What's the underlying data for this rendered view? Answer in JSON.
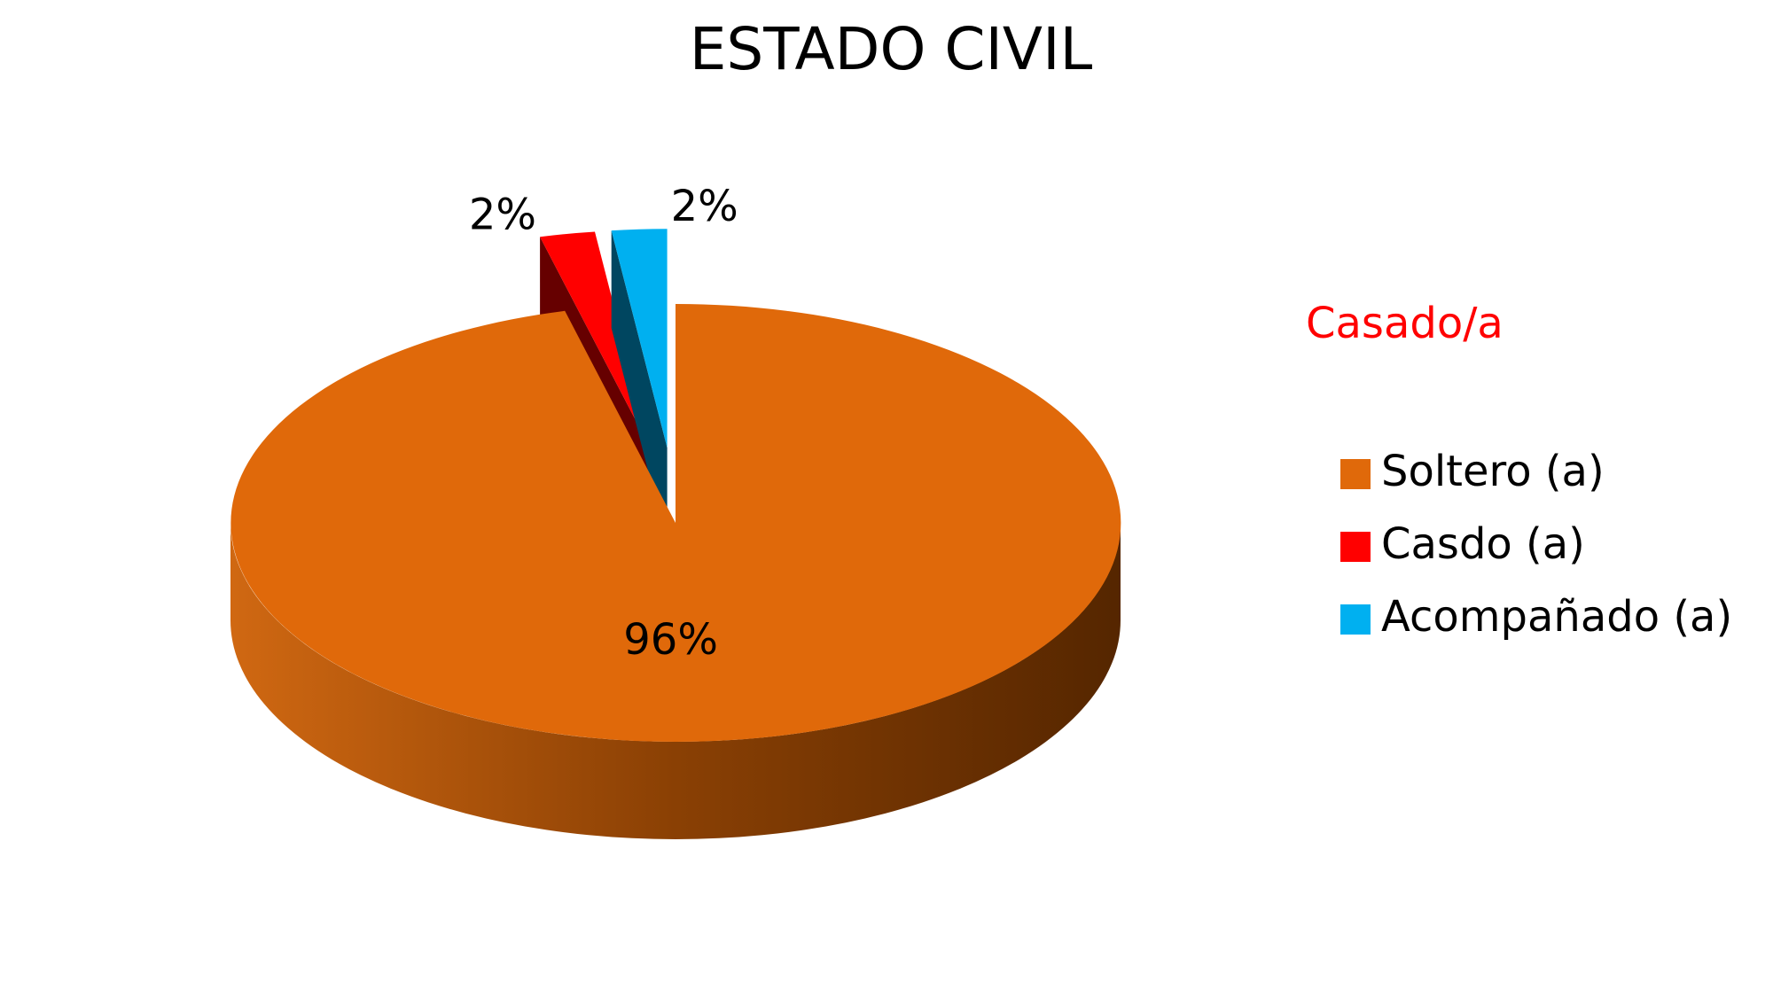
{
  "chart_data": {
    "type": "pie",
    "title": "ESTADO CIVIL",
    "annotation": "Casado/a",
    "categories": [
      "Soltero (a)",
      "Casdo (a)",
      "Acompañado (a)"
    ],
    "values": [
      96,
      2,
      2
    ],
    "value_labels": [
      "96%",
      "2%",
      "2%"
    ],
    "colors": [
      "#e0690a",
      "#ff0000",
      "#00b0f0"
    ],
    "legend": "right"
  }
}
